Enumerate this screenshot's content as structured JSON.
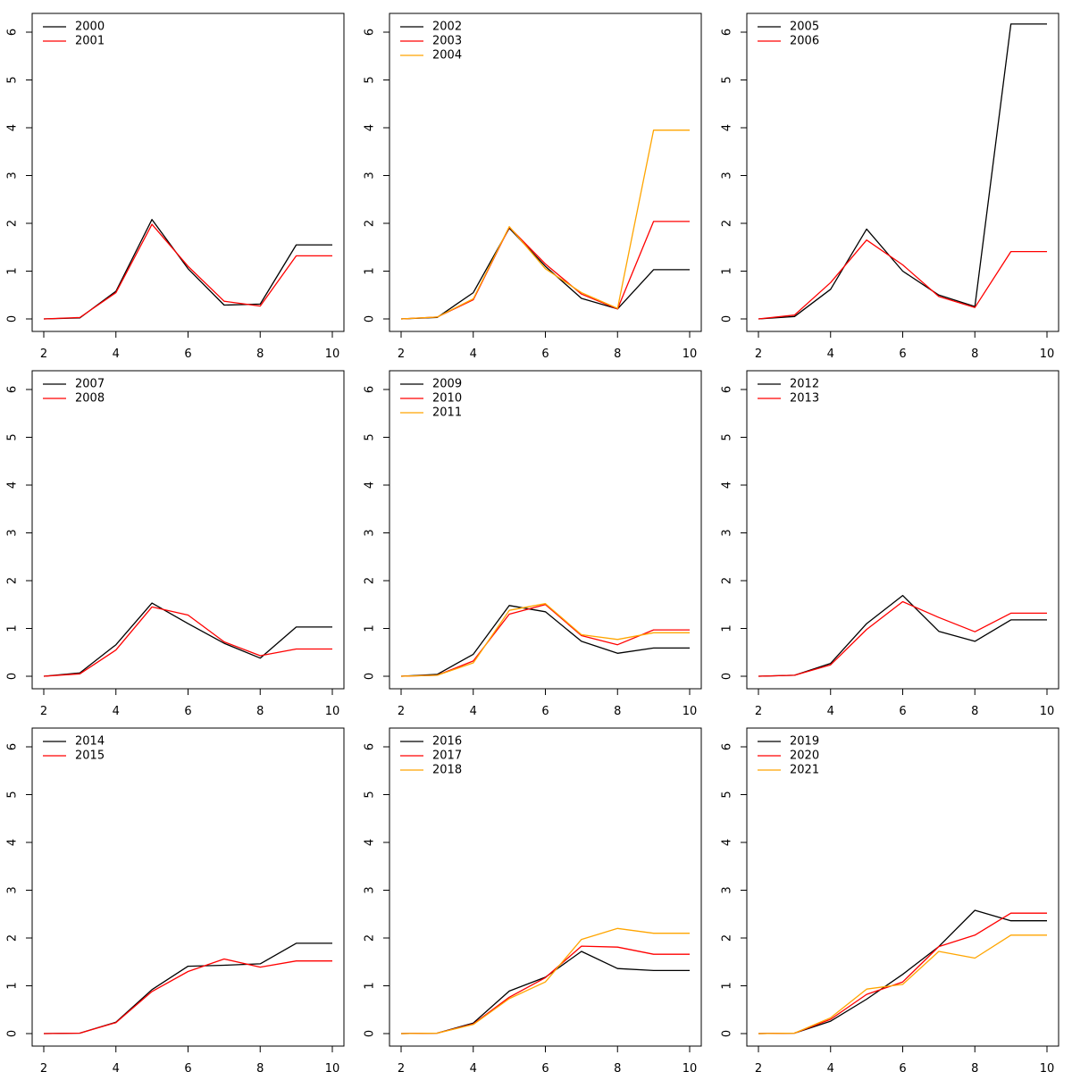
{
  "colors": {
    "series": [
      "#000000",
      "#ff0000",
      "#ffa500"
    ],
    "axis": "#000000",
    "background": "#ffffff"
  },
  "chart_data": [
    {
      "type": "line",
      "x": [
        2,
        3,
        4,
        5,
        6,
        7,
        8,
        9,
        10
      ],
      "xlim": [
        2,
        10
      ],
      "ylim": [
        0,
        6
      ],
      "xticks": [
        "2",
        "4",
        "6",
        "8",
        "10"
      ],
      "yticks": [
        "0",
        "1",
        "2",
        "3",
        "4",
        "5",
        "6"
      ],
      "legend_position": "top-left",
      "series": [
        {
          "name": "2000",
          "values": [
            0,
            0.02,
            0.58,
            2.08,
            1.05,
            0.29,
            0.31,
            1.55,
            1.55
          ]
        },
        {
          "name": "2001",
          "values": [
            0,
            0.03,
            0.55,
            1.98,
            1.1,
            0.37,
            0.27,
            1.32,
            1.32
          ]
        }
      ]
    },
    {
      "type": "line",
      "x": [
        2,
        3,
        4,
        5,
        6,
        7,
        8,
        9,
        10
      ],
      "xlim": [
        2,
        10
      ],
      "ylim": [
        0,
        6
      ],
      "xticks": [
        "2",
        "4",
        "6",
        "8",
        "10"
      ],
      "yticks": [
        "0",
        "1",
        "2",
        "3",
        "4",
        "5",
        "6"
      ],
      "legend_position": "top-left",
      "series": [
        {
          "name": "2002",
          "values": [
            0,
            0.03,
            0.55,
            1.9,
            1.1,
            0.43,
            0.21,
            1.03,
            1.03
          ]
        },
        {
          "name": "2003",
          "values": [
            0,
            0.04,
            0.4,
            1.92,
            1.15,
            0.52,
            0.21,
            2.04,
            2.04
          ]
        },
        {
          "name": "2004",
          "values": [
            0,
            0.04,
            0.42,
            1.93,
            1.05,
            0.55,
            0.22,
            3.95,
            3.95
          ]
        }
      ]
    },
    {
      "type": "line",
      "x": [
        2,
        3,
        4,
        5,
        6,
        7,
        8,
        9,
        10
      ],
      "xlim": [
        2,
        10
      ],
      "ylim": [
        0,
        6
      ],
      "xticks": [
        "2",
        "4",
        "6",
        "8",
        "10"
      ],
      "yticks": [
        "0",
        "1",
        "2",
        "3",
        "4",
        "5",
        "6"
      ],
      "legend_position": "top-left",
      "series": [
        {
          "name": "2005",
          "values": [
            0,
            0.05,
            0.62,
            1.88,
            1.0,
            0.5,
            0.26,
            6.17,
            6.17
          ]
        },
        {
          "name": "2006",
          "values": [
            0,
            0.08,
            0.76,
            1.65,
            1.13,
            0.47,
            0.24,
            1.41,
            1.41
          ]
        }
      ]
    },
    {
      "type": "line",
      "x": [
        2,
        3,
        4,
        5,
        6,
        7,
        8,
        9,
        10
      ],
      "xlim": [
        2,
        10
      ],
      "ylim": [
        0,
        6
      ],
      "xticks": [
        "2",
        "4",
        "6",
        "8",
        "10"
      ],
      "yticks": [
        "0",
        "1",
        "2",
        "3",
        "4",
        "5",
        "6"
      ],
      "legend_position": "top-left",
      "series": [
        {
          "name": "2007",
          "values": [
            0,
            0.07,
            0.66,
            1.53,
            1.1,
            0.69,
            0.38,
            1.03,
            1.03
          ]
        },
        {
          "name": "2008",
          "values": [
            0,
            0.05,
            0.55,
            1.45,
            1.28,
            0.72,
            0.43,
            0.57,
            0.57
          ]
        }
      ]
    },
    {
      "type": "line",
      "x": [
        2,
        3,
        4,
        5,
        6,
        7,
        8,
        9,
        10
      ],
      "xlim": [
        2,
        10
      ],
      "ylim": [
        0,
        6
      ],
      "xticks": [
        "2",
        "4",
        "6",
        "8",
        "10"
      ],
      "yticks": [
        "0",
        "1",
        "2",
        "3",
        "4",
        "5",
        "6"
      ],
      "legend_position": "top-left",
      "series": [
        {
          "name": "2009",
          "values": [
            0,
            0.04,
            0.46,
            1.48,
            1.35,
            0.73,
            0.48,
            0.59,
            0.59
          ]
        },
        {
          "name": "2010",
          "values": [
            0,
            0.02,
            0.32,
            1.3,
            1.5,
            0.85,
            0.66,
            0.97,
            0.97
          ]
        },
        {
          "name": "2011",
          "values": [
            0,
            0.02,
            0.28,
            1.38,
            1.52,
            0.87,
            0.77,
            0.91,
            0.91
          ]
        }
      ]
    },
    {
      "type": "line",
      "x": [
        2,
        3,
        4,
        5,
        6,
        7,
        8,
        9,
        10
      ],
      "xlim": [
        2,
        10
      ],
      "ylim": [
        0,
        6
      ],
      "xticks": [
        "2",
        "4",
        "6",
        "8",
        "10"
      ],
      "yticks": [
        "0",
        "1",
        "2",
        "3",
        "4",
        "5",
        "6"
      ],
      "legend_position": "top-left",
      "series": [
        {
          "name": "2012",
          "values": [
            0,
            0.02,
            0.27,
            1.1,
            1.69,
            0.94,
            0.73,
            1.18,
            1.18
          ]
        },
        {
          "name": "2013",
          "values": [
            0,
            0.02,
            0.24,
            0.98,
            1.56,
            1.23,
            0.93,
            1.32,
            1.32
          ]
        }
      ]
    },
    {
      "type": "line",
      "x": [
        2,
        3,
        4,
        5,
        6,
        7,
        8,
        9,
        10
      ],
      "xlim": [
        2,
        10
      ],
      "ylim": [
        0,
        6
      ],
      "xticks": [
        "2",
        "4",
        "6",
        "8",
        "10"
      ],
      "yticks": [
        "0",
        "1",
        "2",
        "3",
        "4",
        "5",
        "6"
      ],
      "legend_position": "top-left",
      "series": [
        {
          "name": "2014",
          "values": [
            0,
            0.01,
            0.24,
            0.92,
            1.41,
            1.43,
            1.46,
            1.89,
            1.89
          ]
        },
        {
          "name": "2015",
          "values": [
            0,
            0.01,
            0.23,
            0.88,
            1.3,
            1.56,
            1.39,
            1.52,
            1.52
          ]
        }
      ]
    },
    {
      "type": "line",
      "x": [
        2,
        3,
        4,
        5,
        6,
        7,
        8,
        9,
        10
      ],
      "xlim": [
        2,
        10
      ],
      "ylim": [
        0,
        6
      ],
      "xticks": [
        "2",
        "4",
        "6",
        "8",
        "10"
      ],
      "yticks": [
        "0",
        "1",
        "2",
        "3",
        "4",
        "5",
        "6"
      ],
      "legend_position": "top-left",
      "series": [
        {
          "name": "2016",
          "values": [
            0,
            0.01,
            0.22,
            0.89,
            1.18,
            1.72,
            1.36,
            1.32,
            1.32
          ]
        },
        {
          "name": "2017",
          "values": [
            0,
            0.01,
            0.2,
            0.76,
            1.17,
            1.83,
            1.81,
            1.66,
            1.66
          ]
        },
        {
          "name": "2018",
          "values": [
            0,
            0.01,
            0.19,
            0.73,
            1.08,
            1.97,
            2.2,
            2.1,
            2.1
          ]
        }
      ]
    },
    {
      "type": "line",
      "x": [
        2,
        3,
        4,
        5,
        6,
        7,
        8,
        9,
        10
      ],
      "xlim": [
        2,
        10
      ],
      "ylim": [
        0,
        6
      ],
      "xticks": [
        "2",
        "4",
        "6",
        "8",
        "10"
      ],
      "yticks": [
        "0",
        "1",
        "2",
        "3",
        "4",
        "5",
        "6"
      ],
      "legend_position": "top-left",
      "series": [
        {
          "name": "2019",
          "values": [
            0,
            0.01,
            0.26,
            0.72,
            1.24,
            1.82,
            2.58,
            2.36,
            2.36
          ]
        },
        {
          "name": "2020",
          "values": [
            0,
            0.01,
            0.3,
            0.82,
            1.08,
            1.82,
            2.06,
            2.52,
            2.52
          ]
        },
        {
          "name": "2021",
          "values": [
            0,
            0.01,
            0.33,
            0.93,
            1.03,
            1.72,
            1.58,
            2.06,
            2.06
          ]
        }
      ]
    }
  ]
}
